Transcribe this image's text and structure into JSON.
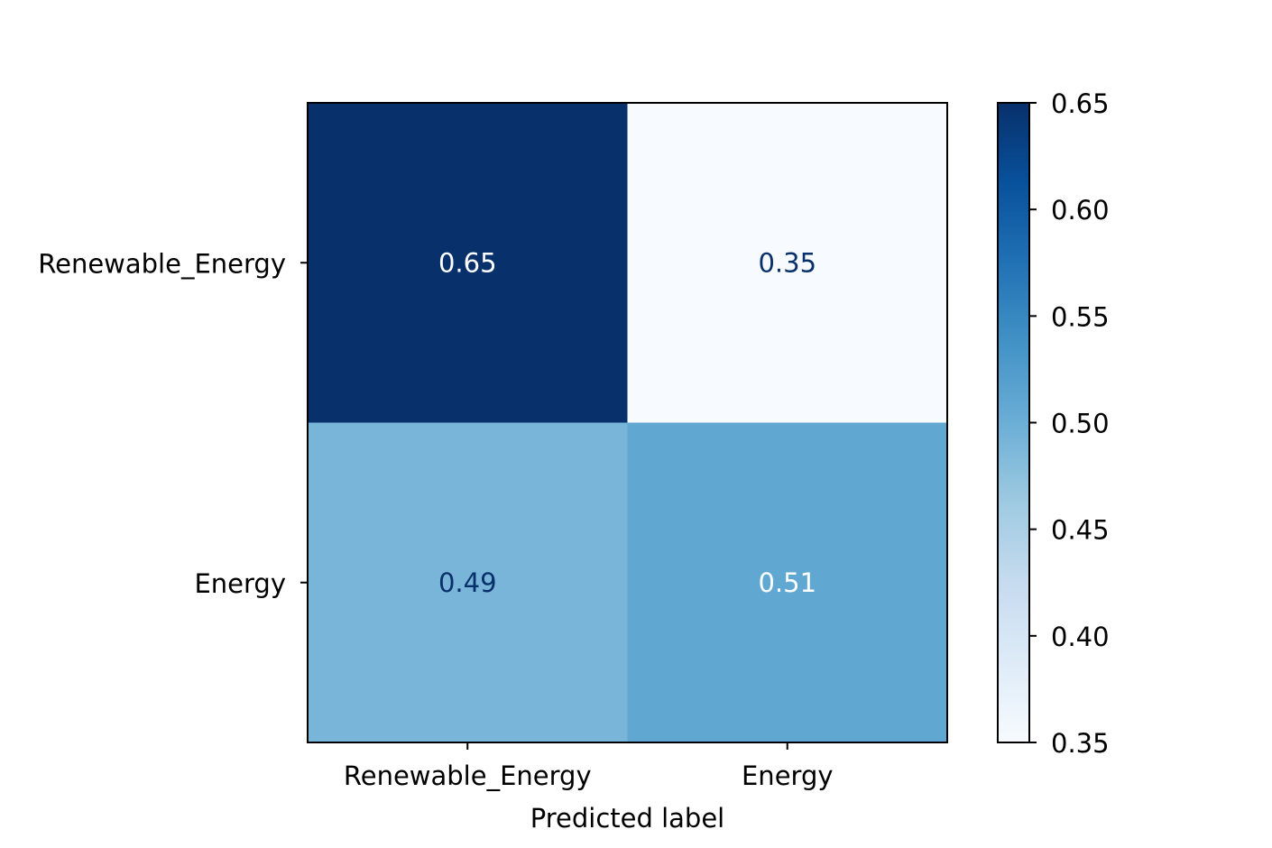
{
  "chart_data": {
    "type": "heatmap",
    "title": "",
    "xlabel": "Predicted label",
    "ylabel": "",
    "x_categories": [
      "Renewable_Energy",
      "Energy"
    ],
    "y_categories": [
      "Renewable_Energy",
      "Energy"
    ],
    "values": [
      [
        0.65,
        0.35
      ],
      [
        0.49,
        0.51
      ]
    ],
    "value_labels": [
      [
        "0.65",
        "0.35"
      ],
      [
        "0.49",
        "0.51"
      ]
    ],
    "colormap": "Blues",
    "colorbar": {
      "range": [
        0.35,
        0.65
      ],
      "ticks": [
        0.35,
        0.4,
        0.45,
        0.5,
        0.55,
        0.6,
        0.65
      ],
      "tick_labels": [
        "0.35",
        "0.40",
        "0.45",
        "0.50",
        "0.55",
        "0.60",
        "0.65"
      ]
    },
    "colors": {
      "light_text": "#ffffff",
      "dark_text": "#08306b"
    }
  }
}
